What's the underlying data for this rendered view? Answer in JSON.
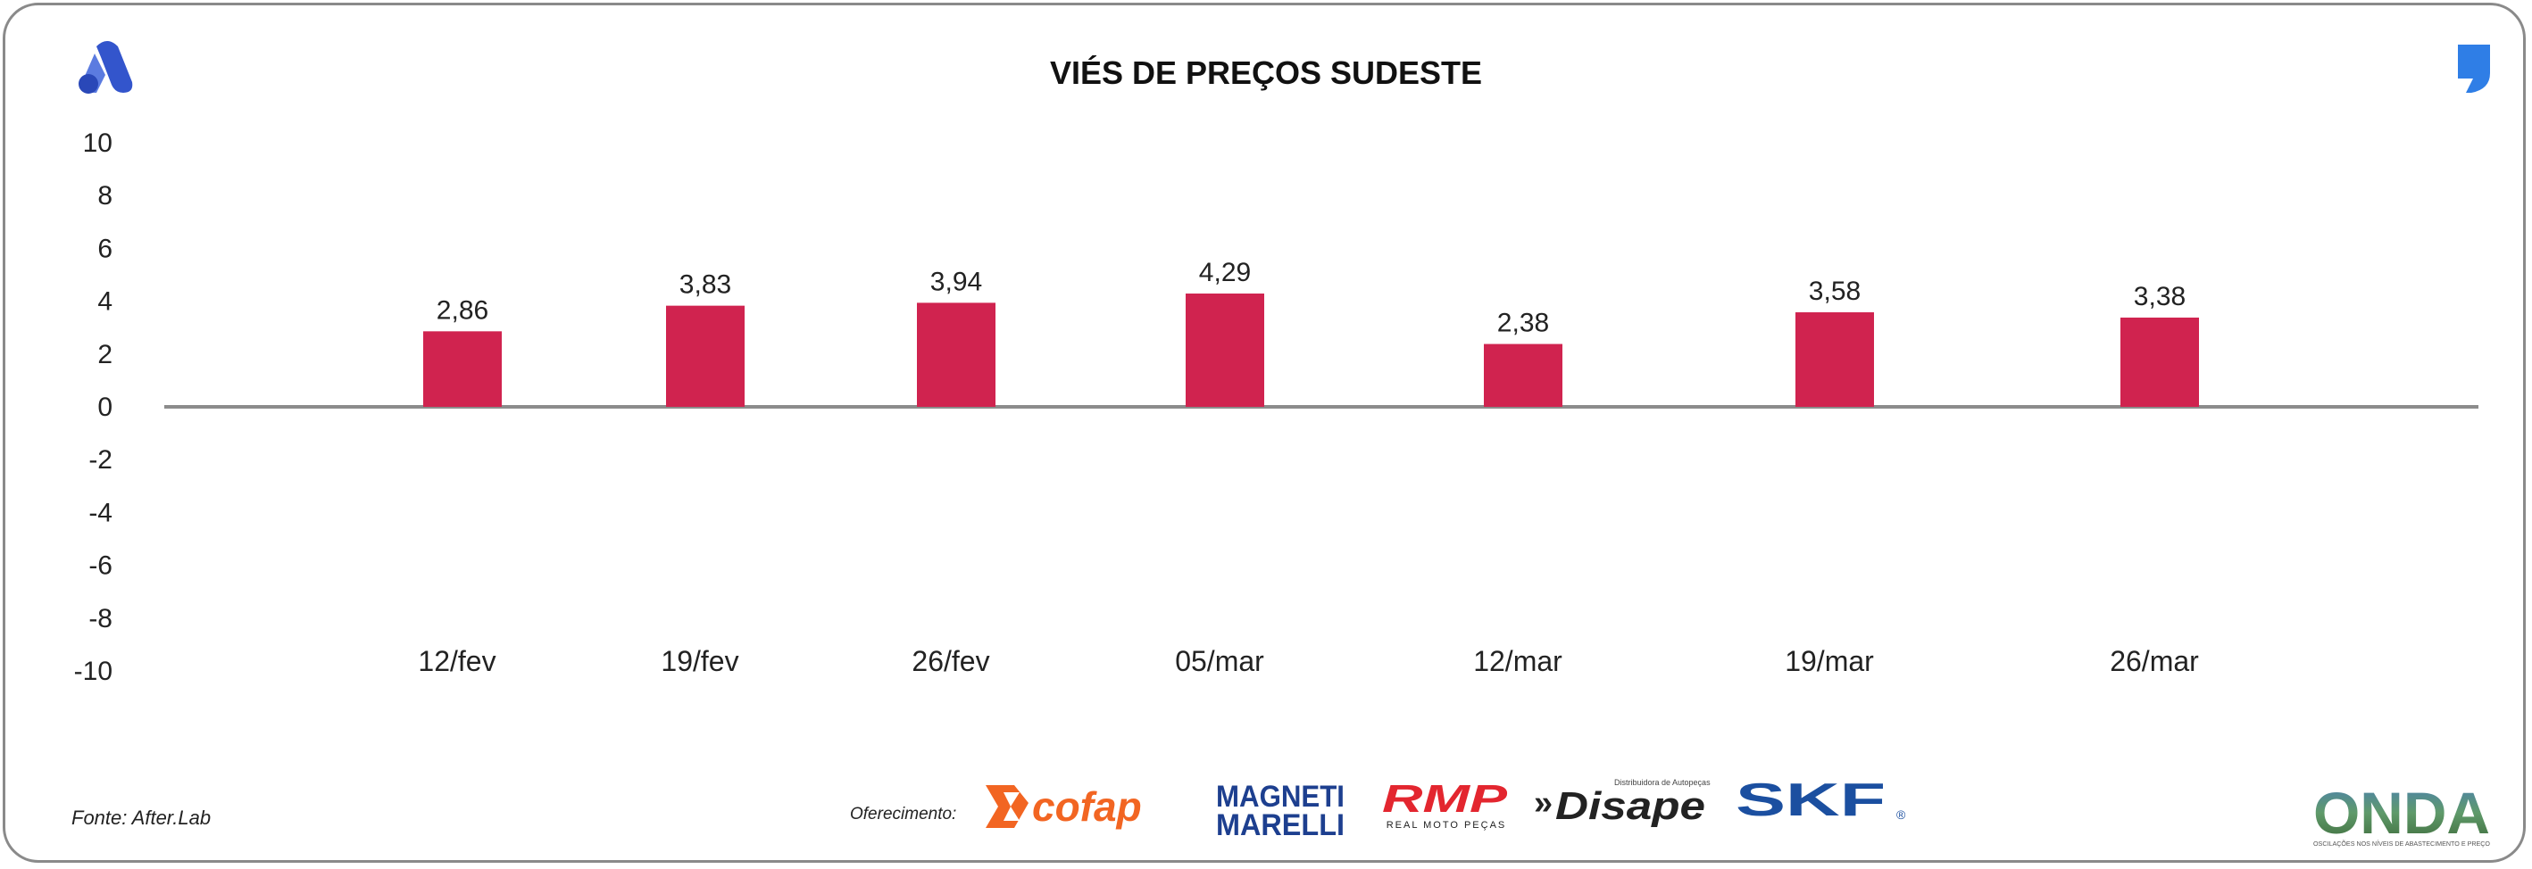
{
  "header": {
    "title": "VIÉS DE PREÇOS SUDESTE",
    "brand_mark_icon": "stylized-a-logo-icon",
    "quote_mark_icon": "comma-quote-icon"
  },
  "chart_data": {
    "type": "bar",
    "title": "VIÉS DE PREÇOS SUDESTE",
    "xlabel": "",
    "ylabel": "",
    "categories": [
      "12/fev",
      "19/fev",
      "26/fev",
      "05/mar",
      "12/mar",
      "19/mar",
      "26/mar"
    ],
    "values": [
      2.86,
      3.83,
      3.94,
      4.29,
      2.38,
      3.58,
      3.38
    ],
    "value_labels": [
      "2,86",
      "3,83",
      "3,94",
      "4,29",
      "2,38",
      "3,58",
      "3,38"
    ],
    "ylim": [
      -10,
      10
    ],
    "yticks": [
      10,
      8,
      6,
      4,
      2,
      0,
      -2,
      -4,
      -6,
      -8,
      -10
    ],
    "grid": false,
    "bar_color": "#d0234f",
    "axis_color": "#8c8c8c"
  },
  "footer": {
    "source": "Fonte: After.Lab",
    "sponsor_label": "Oferecimento:",
    "sponsors": [
      {
        "name": "cofap",
        "color": "#f26522"
      },
      {
        "name": "MAGNETI MARELLI",
        "line1": "MAGNETI",
        "line2": "MARELLI",
        "color": "#1d3f8f"
      },
      {
        "name": "RMP",
        "subtitle": "REAL MOTO PEÇAS",
        "color": "#e3262f"
      },
      {
        "name": "Disape",
        "tagline": "Distribuidora de Autopeças",
        "color": "#222222"
      },
      {
        "name": "SKF",
        "mark": "®",
        "color": "#1b4fa0"
      }
    ],
    "onda": {
      "name": "ONDA",
      "tagline": "OSCILAÇÕES NOS NÍVEIS DE ABASTECIMENTO E PREÇO"
    }
  }
}
